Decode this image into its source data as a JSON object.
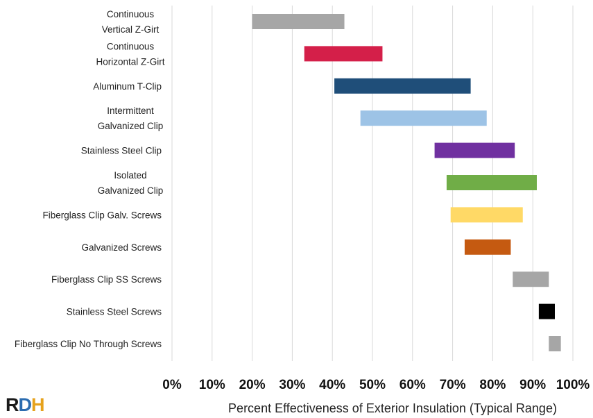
{
  "chart_data": {
    "type": "bar",
    "orientation": "horizontal-floating-range",
    "title": "",
    "xlabel": "Percent Effectiveness of Exterior Insulation (Typical Range)",
    "ylabel": "",
    "xlim": [
      0,
      100
    ],
    "x_ticks": [
      "0%",
      "10%",
      "20%",
      "30%",
      "40%",
      "50%",
      "60%",
      "70%",
      "80%",
      "90%",
      "100%"
    ],
    "grid": "vertical",
    "legend": "none",
    "categories": [
      {
        "name": "continuous-vertical-z-girt",
        "label_lines": [
          "Continuous",
          "Vertical Z-Girt"
        ],
        "low": 20,
        "high": 43,
        "color": "#a6a6a6"
      },
      {
        "name": "continuous-horizontal-z-girt",
        "label_lines": [
          "Continuous",
          "Horizontal Z-Girt"
        ],
        "low": 33,
        "high": 52.5,
        "color": "#d41f49"
      },
      {
        "name": "aluminum-t-clip",
        "label_lines": [
          "Aluminum T-Clip"
        ],
        "low": 40.5,
        "high": 74.5,
        "color": "#1f4e79"
      },
      {
        "name": "intermittent-galvanized-clip",
        "label_lines": [
          "Intermittent",
          "Galvanized Clip"
        ],
        "low": 47,
        "high": 78.5,
        "color": "#9dc3e6"
      },
      {
        "name": "stainless-steel-clip",
        "label_lines": [
          "Stainless Steel Clip"
        ],
        "low": 65.5,
        "high": 85.5,
        "color": "#7030a0"
      },
      {
        "name": "isolated-galvanized-clip",
        "label_lines": [
          "Isolated",
          "Galvanized Clip"
        ],
        "low": 68.5,
        "high": 91,
        "color": "#70ad47"
      },
      {
        "name": "fiberglass-clip-galv-screws",
        "label_lines": [
          "Fiberglass Clip Galv. Screws"
        ],
        "low": 69.5,
        "high": 87.5,
        "color": "#ffd966"
      },
      {
        "name": "galvanized-screws",
        "label_lines": [
          "Galvanized Screws"
        ],
        "low": 73,
        "high": 84.5,
        "color": "#c55a11"
      },
      {
        "name": "fiberglass-clip-ss-screws",
        "label_lines": [
          "Fiberglass Clip SS Screws"
        ],
        "low": 85,
        "high": 94,
        "color": "#a6a6a6"
      },
      {
        "name": "stainless-steel-screws",
        "label_lines": [
          "Stainless Steel Screws"
        ],
        "low": 91.5,
        "high": 95.5,
        "color": "#000000"
      },
      {
        "name": "fiberglass-clip-no-through-screws",
        "label_lines": [
          "Fiberglass Clip No Through Screws"
        ],
        "low": 94,
        "high": 97,
        "color": "#a6a6a6"
      }
    ]
  },
  "logo": {
    "letters": [
      {
        "text": "R",
        "color": "#1a1a1a"
      },
      {
        "text": "D",
        "color": "#2b6cb0"
      },
      {
        "text": "H",
        "color": "#e6a21c"
      }
    ]
  }
}
